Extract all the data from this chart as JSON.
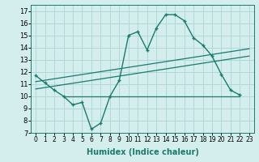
{
  "xlabel": "Humidex (Indice chaleur)",
  "bg_color": "#d4eeee",
  "line_color": "#1a7a6e",
  "grid_color": "#b0d8d8",
  "curve_x": [
    0,
    1,
    2,
    3,
    4,
    5,
    6,
    7,
    8,
    9,
    10,
    11,
    12,
    13,
    14,
    15,
    16,
    17,
    18,
    19,
    20,
    21,
    22,
    23
  ],
  "curve_y": [
    11.7,
    11.1,
    10.5,
    10.0,
    9.3,
    9.5,
    7.3,
    7.8,
    10.0,
    11.3,
    15.0,
    15.3,
    13.8,
    15.6,
    16.7,
    16.7,
    16.2,
    14.8,
    14.2,
    13.3,
    11.8,
    10.5,
    10.1,
    null
  ],
  "line1_x": [
    0,
    23
  ],
  "line1_y": [
    11.2,
    13.9
  ],
  "line2_x": [
    0,
    23
  ],
  "line2_y": [
    10.6,
    13.3
  ],
  "hline_y": 10.0,
  "hline_x": [
    3,
    22
  ],
  "ylim": [
    7,
    17.5
  ],
  "xlim": [
    -0.5,
    23.5
  ],
  "yticks": [
    7,
    8,
    9,
    10,
    11,
    12,
    13,
    14,
    15,
    16,
    17
  ],
  "xticks": [
    0,
    1,
    2,
    3,
    4,
    5,
    6,
    7,
    8,
    9,
    10,
    11,
    12,
    13,
    14,
    15,
    16,
    17,
    18,
    19,
    20,
    21,
    22,
    23
  ],
  "xtick_labels": [
    "0",
    "1",
    "2",
    "3",
    "4",
    "5",
    "6",
    "7",
    "8",
    "9",
    "10",
    "11",
    "12",
    "13",
    "14",
    "15",
    "16",
    "17",
    "18",
    "19",
    "20",
    "21",
    "22",
    "23"
  ],
  "tick_fontsize": 5.5,
  "ytick_fontsize": 6.0,
  "xlabel_fontsize": 7.0
}
